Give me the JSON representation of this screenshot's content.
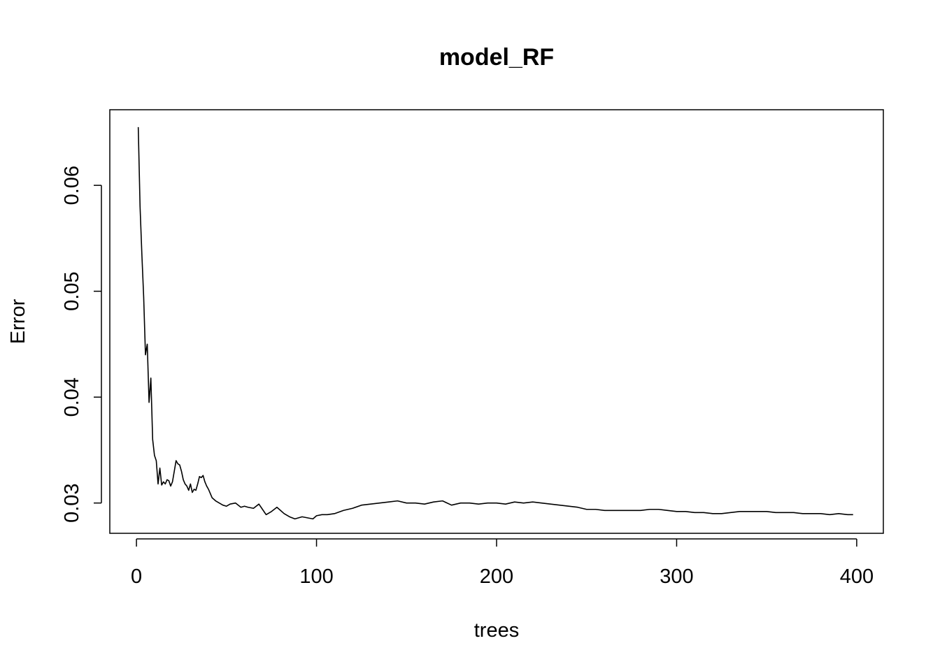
{
  "chart_data": {
    "type": "line",
    "title": "model_RF",
    "xlabel": "trees",
    "ylabel": "Error",
    "xlim": [
      -14.8,
      414.8
    ],
    "ylim": [
      0.02714,
      0.06714
    ],
    "xticks": [
      0,
      100,
      200,
      300,
      400
    ],
    "xtick_labels": [
      "0",
      "100",
      "200",
      "300",
      "400"
    ],
    "yticks": [
      0.03,
      0.04,
      0.05,
      0.06
    ],
    "ytick_labels": [
      "0.03",
      "0.04",
      "0.05",
      "0.06"
    ],
    "grid": false,
    "legend": "none",
    "series": [
      {
        "x": [
          1,
          2,
          3,
          4,
          5,
          6,
          7,
          8,
          9,
          10,
          11,
          12,
          13,
          14,
          15,
          16,
          17,
          18,
          19,
          20,
          21,
          22,
          23,
          24,
          25,
          26,
          27,
          28,
          29,
          30,
          31,
          32,
          33,
          34,
          35,
          36,
          37,
          38,
          39,
          40,
          42,
          44,
          46,
          48,
          50,
          52,
          55,
          58,
          60,
          62,
          65,
          68,
          70,
          72,
          75,
          78,
          80,
          82,
          85,
          88,
          90,
          92,
          95,
          98,
          100,
          103,
          106,
          110,
          115,
          120,
          125,
          130,
          135,
          140,
          145,
          150,
          155,
          160,
          165,
          170,
          175,
          180,
          185,
          190,
          195,
          200,
          205,
          210,
          215,
          220,
          225,
          230,
          235,
          240,
          245,
          250,
          255,
          260,
          265,
          270,
          275,
          280,
          285,
          290,
          295,
          300,
          305,
          310,
          315,
          320,
          325,
          330,
          335,
          340,
          345,
          350,
          355,
          360,
          365,
          370,
          375,
          380,
          385,
          390,
          395,
          398
        ],
        "values": [
          0.0655,
          0.058,
          0.0535,
          0.0495,
          0.044,
          0.045,
          0.0395,
          0.0418,
          0.036,
          0.0345,
          0.034,
          0.0318,
          0.0333,
          0.0317,
          0.032,
          0.0318,
          0.0322,
          0.0321,
          0.0316,
          0.032,
          0.033,
          0.034,
          0.0337,
          0.0336,
          0.033,
          0.0322,
          0.0318,
          0.0316,
          0.0312,
          0.0318,
          0.031,
          0.0313,
          0.0312,
          0.0318,
          0.0325,
          0.0324,
          0.0326,
          0.032,
          0.0316,
          0.0313,
          0.0305,
          0.0302,
          0.03,
          0.0298,
          0.0297,
          0.0299,
          0.03,
          0.0296,
          0.0297,
          0.0296,
          0.0295,
          0.0299,
          0.0294,
          0.0289,
          0.0292,
          0.0296,
          0.0293,
          0.029,
          0.0287,
          0.0285,
          0.0286,
          0.0287,
          0.0286,
          0.0285,
          0.0288,
          0.0289,
          0.0289,
          0.029,
          0.0293,
          0.0295,
          0.0298,
          0.0299,
          0.03,
          0.0301,
          0.0302,
          0.03,
          0.03,
          0.0299,
          0.0301,
          0.0302,
          0.0298,
          0.03,
          0.03,
          0.0299,
          0.03,
          0.03,
          0.0299,
          0.0301,
          0.03,
          0.0301,
          0.03,
          0.0299,
          0.0298,
          0.0297,
          0.0296,
          0.0294,
          0.0294,
          0.0293,
          0.0293,
          0.0293,
          0.0293,
          0.0293,
          0.0294,
          0.0294,
          0.0293,
          0.0292,
          0.0292,
          0.0291,
          0.0291,
          0.029,
          0.029,
          0.0291,
          0.0292,
          0.0292,
          0.0292,
          0.0292,
          0.0291,
          0.0291,
          0.0291,
          0.029,
          0.029,
          0.029,
          0.0289,
          0.029,
          0.0289,
          0.0289
        ]
      }
    ]
  }
}
